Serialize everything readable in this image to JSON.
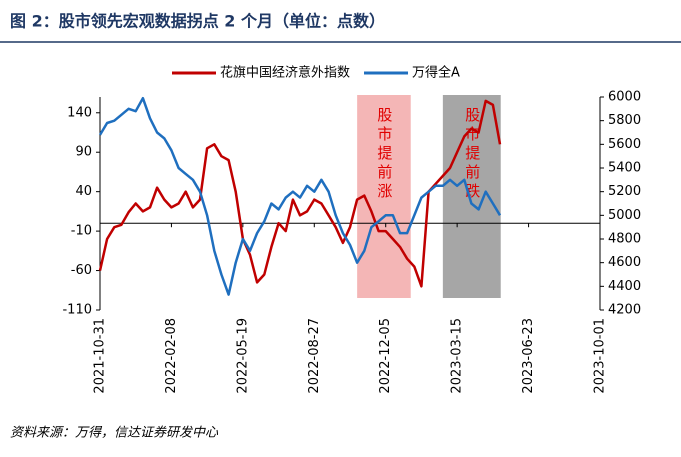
{
  "chart_data": {
    "type": "line",
    "title": "图 2：股市领先宏观数据拐点 2 个月（单位：点数）",
    "source": "资料来源：万得，信达证券研发中心",
    "x": [
      "2021-10-31",
      "2021-11-10",
      "2021-11-20",
      "2021-11-30",
      "2021-12-10",
      "2021-12-20",
      "2021-12-30",
      "2022-01-09",
      "2022-01-19",
      "2022-01-29",
      "2022-02-08",
      "2022-02-18",
      "2022-02-28",
      "2022-03-10",
      "2022-03-20",
      "2022-03-30",
      "2022-04-09",
      "2022-04-19",
      "2022-04-29",
      "2022-05-09",
      "2022-05-19",
      "2022-05-29",
      "2022-06-08",
      "2022-06-18",
      "2022-06-28",
      "2022-07-08",
      "2022-07-18",
      "2022-07-28",
      "2022-08-07",
      "2022-08-17",
      "2022-08-27",
      "2022-09-06",
      "2022-09-16",
      "2022-09-26",
      "2022-10-06",
      "2022-10-16",
      "2022-10-26",
      "2022-11-05",
      "2022-11-15",
      "2022-11-25",
      "2022-12-05",
      "2022-12-15",
      "2022-12-25",
      "2023-01-04",
      "2023-01-14",
      "2023-01-24",
      "2023-02-03",
      "2023-02-13",
      "2023-02-23",
      "2023-03-05",
      "2023-03-15",
      "2023-03-25",
      "2023-04-04",
      "2023-04-14",
      "2023-04-24",
      "2023-05-04",
      "2023-05-14"
    ],
    "series": [
      {
        "name": "花旗中国经济意外指数",
        "color": "#c00000",
        "axis": "y",
        "values": [
          -60,
          -20,
          -5,
          -2,
          14,
          25,
          15,
          20,
          45,
          30,
          20,
          25,
          40,
          20,
          30,
          95,
          100,
          85,
          80,
          40,
          -20,
          -40,
          -75,
          -65,
          -30,
          0,
          -10,
          30,
          10,
          15,
          30,
          25,
          10,
          -5,
          -25,
          -5,
          30,
          35,
          15,
          -10,
          -10,
          -20,
          -30,
          -45,
          -55,
          -80,
          40,
          50,
          60,
          70,
          90,
          110,
          120,
          115,
          155,
          150,
          100
        ]
      },
      {
        "name": "万得全A",
        "color": "#1f6fbf",
        "axis": "y2",
        "values": [
          5680,
          5780,
          5800,
          5850,
          5900,
          5880,
          5990,
          5820,
          5700,
          5650,
          5550,
          5400,
          5350,
          5300,
          5200,
          5000,
          4700,
          4500,
          4330,
          4600,
          4800,
          4700,
          4850,
          4950,
          5100,
          5050,
          5150,
          5200,
          5150,
          5250,
          5200,
          5300,
          5200,
          5000,
          4850,
          4750,
          4600,
          4700,
          4900,
          4950,
          5000,
          5000,
          4850,
          4850,
          5000,
          5150,
          5200,
          5250,
          5250,
          5300,
          5250,
          5300,
          5100,
          5050,
          5200,
          5100,
          5000
        ]
      }
    ],
    "xlim": [
      "2021-10-31",
      "2023-10-01"
    ],
    "xticks": [
      "2021-10-31",
      "2022-02-08",
      "2022-05-19",
      "2022-08-27",
      "2022-12-05",
      "2023-03-15",
      "2023-06-23",
      "2023-10-01"
    ],
    "ylim": [
      -110,
      160
    ],
    "yticks": [
      -110,
      -60,
      -10,
      40,
      90,
      140
    ],
    "y2lim": [
      4200,
      6000
    ],
    "y2ticks": [
      4200,
      4400,
      4600,
      4800,
      5000,
      5200,
      5400,
      5600,
      5800,
      6000
    ],
    "annotations": [
      {
        "text": "股市提前涨",
        "start": "2022-10-26",
        "end": "2023-01-09",
        "color": "#f4b6b6"
      },
      {
        "text": "股市提前跌",
        "start": "2023-02-23",
        "end": "2023-05-15",
        "color": "#a6a6a6"
      }
    ],
    "grid": false
  }
}
